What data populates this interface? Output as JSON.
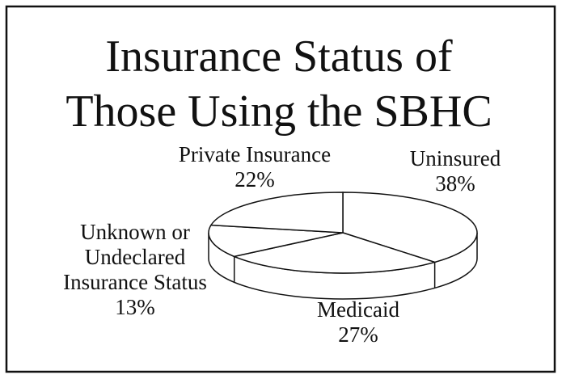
{
  "chart_data": {
    "type": "pie",
    "title": [
      "Insurance Status of",
      "Those Using the SBHC"
    ],
    "categories": [
      "Uninsured",
      "Medicaid",
      "Unknown or Undeclared Insurance Status",
      "Private Insurance"
    ],
    "values": [
      38,
      27,
      13,
      22
    ],
    "value_labels": [
      "38%",
      "27%",
      "13%",
      "22%"
    ],
    "color": "#ffffff"
  }
}
